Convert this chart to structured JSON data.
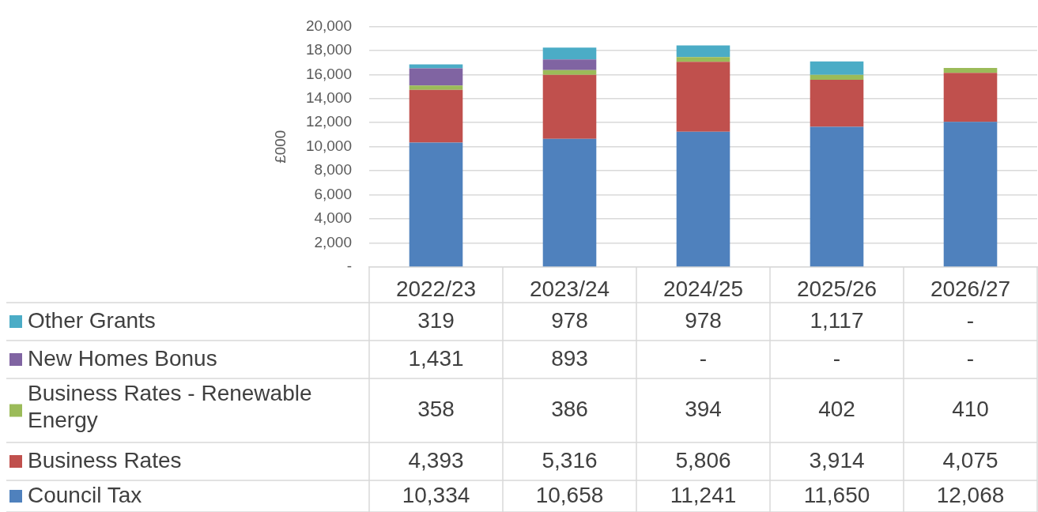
{
  "chart_data": {
    "type": "bar",
    "stacked": true,
    "ylabel": "£000",
    "categories": [
      "2022/23",
      "2023/24",
      "2024/25",
      "2025/26",
      "2026/27"
    ],
    "ylim": [
      0,
      20000
    ],
    "yticks": [
      {
        "value": 0,
        "label": "-"
      },
      {
        "value": 2000,
        "label": "2,000"
      },
      {
        "value": 4000,
        "label": "4,000"
      },
      {
        "value": 6000,
        "label": "6,000"
      },
      {
        "value": 8000,
        "label": "8,000"
      },
      {
        "value": 10000,
        "label": "10,000"
      },
      {
        "value": 12000,
        "label": "12,000"
      },
      {
        "value": 14000,
        "label": "14,000"
      },
      {
        "value": 16000,
        "label": "16,000"
      },
      {
        "value": 18000,
        "label": "18,000"
      },
      {
        "value": 20000,
        "label": "20,000"
      }
    ],
    "grid": "y",
    "legend": "bottom",
    "data_labels": true,
    "series": [
      {
        "name": "Council Tax",
        "color": "#4f81bd",
        "values": [
          10334,
          10658,
          11241,
          11650,
          12068
        ],
        "value_labels": [
          "10,334",
          "10,658",
          "11,241",
          "11,650",
          "12,068"
        ]
      },
      {
        "name": "Business Rates",
        "color": "#c0504d",
        "values": [
          4393,
          5316,
          5806,
          3914,
          4075
        ],
        "value_labels": [
          "4,393",
          "5,316",
          "5,806",
          "3,914",
          "4,075"
        ]
      },
      {
        "name": "Business Rates - Renewable Energy",
        "color": "#9bbb59",
        "values": [
          358,
          386,
          394,
          402,
          410
        ],
        "value_labels": [
          "358",
          "386",
          "394",
          "402",
          "410"
        ]
      },
      {
        "name": "New Homes Bonus",
        "color": "#8064a2",
        "values": [
          1431,
          893,
          null,
          null,
          null
        ],
        "value_labels": [
          "1,431",
          "893",
          "-",
          "-",
          "-"
        ]
      },
      {
        "name": "Other Grants",
        "color": "#4bacc6",
        "values": [
          319,
          978,
          978,
          1117,
          null
        ],
        "value_labels": [
          "319",
          "978",
          "978",
          "1,117",
          "-"
        ]
      }
    ]
  }
}
